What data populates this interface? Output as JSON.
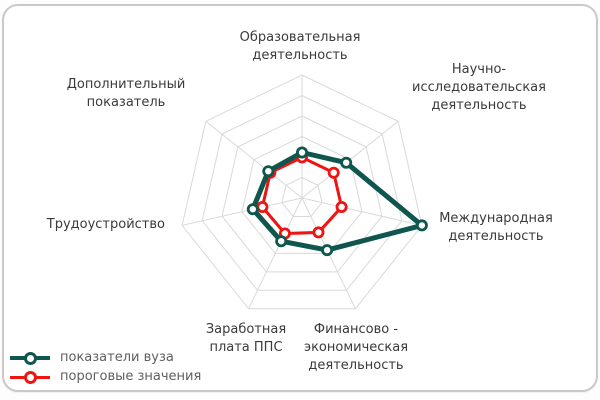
{
  "chart_data": {
    "type": "radar",
    "title": "",
    "grid_levels": 6,
    "grid_color": "#d9d9d9",
    "value_scale": "fraction of outer ring (outer ring = 1.0)",
    "axes": [
      {
        "id": "educational",
        "label": "Образовательная\nдеятельность"
      },
      {
        "id": "research",
        "label": "Научно-\nисследовательская\nдеятельность"
      },
      {
        "id": "international",
        "label": "Международная\nдеятельность"
      },
      {
        "id": "financial",
        "label": "Финансово -\nэкономическая\nдеятельность"
      },
      {
        "id": "salary",
        "label": "Заработная\nплата ППС"
      },
      {
        "id": "employment",
        "label": "Трудоустройство"
      },
      {
        "id": "additional",
        "label": "Дополнительный\nпоказатель"
      }
    ],
    "series": [
      {
        "name": "показатели вуза",
        "color": "#0e564e",
        "line_width": 5,
        "values": [
          0.37,
          0.46,
          1.0,
          0.47,
          0.39,
          0.41,
          0.35
        ]
      },
      {
        "name": "пороговые значения",
        "color": "#ee1411",
        "line_width": 3,
        "values": [
          0.33,
          0.33,
          0.33,
          0.31,
          0.32,
          0.33,
          0.33
        ]
      }
    ],
    "legend_position": "bottom-left"
  },
  "legend": {
    "items": [
      "показатели вуза",
      "пороговые значения"
    ]
  }
}
